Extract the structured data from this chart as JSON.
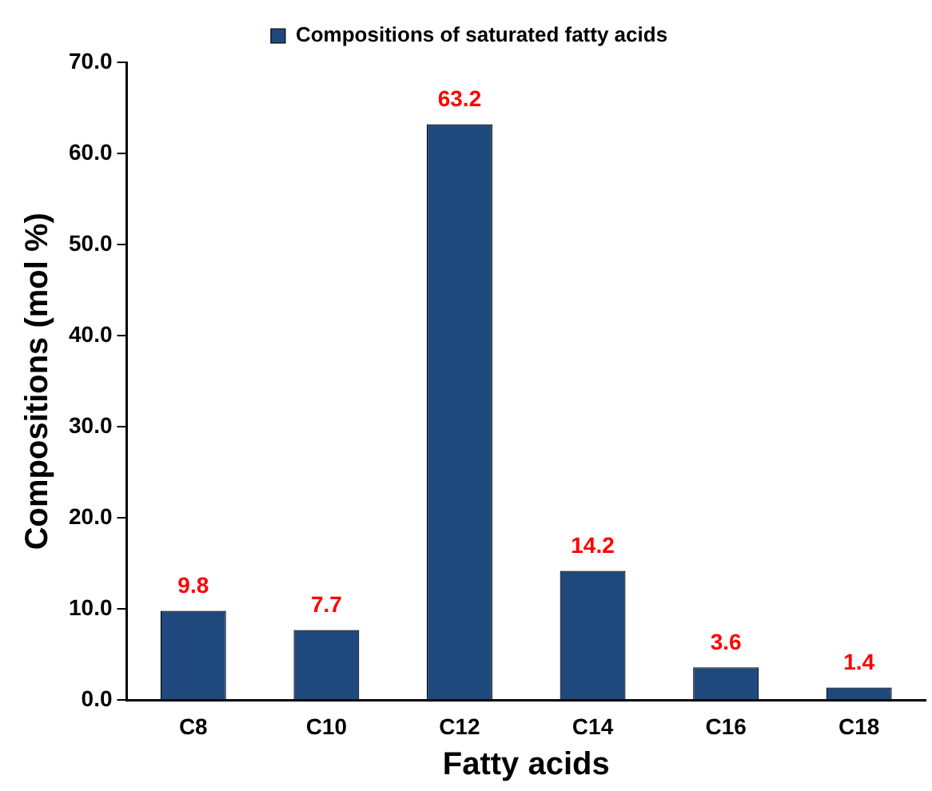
{
  "chart_data": {
    "type": "bar",
    "xlabel": "Fatty acids",
    "ylabel": "Compositions (mol %)",
    "categories": [
      "C8",
      "C10",
      "C12",
      "C14",
      "C16",
      "C18"
    ],
    "series": [
      {
        "name": "Compositions of saturated fatty acids",
        "color": "#1f497d",
        "values": [
          9.8,
          7.7,
          63.2,
          14.2,
          3.6,
          1.4
        ]
      }
    ],
    "ylim": [
      0,
      70
    ],
    "yticks": [
      {
        "value": 0,
        "label": "0.0"
      },
      {
        "value": 10,
        "label": "10.0"
      },
      {
        "value": 20,
        "label": "20.0"
      },
      {
        "value": 30,
        "label": "30.0"
      },
      {
        "value": 40,
        "label": "40.0"
      },
      {
        "value": 50,
        "label": "50.0"
      },
      {
        "value": 60,
        "label": "60.0"
      },
      {
        "value": 70,
        "label": "70.0"
      }
    ],
    "grid": false,
    "legend": "top",
    "data_labels": true
  }
}
